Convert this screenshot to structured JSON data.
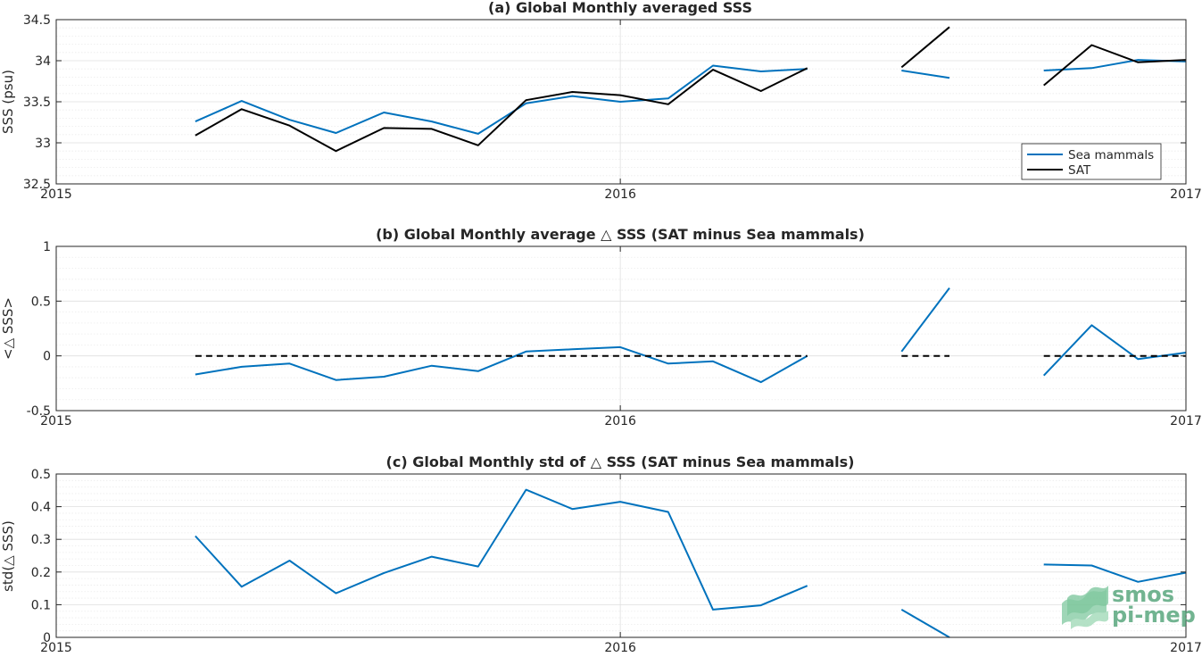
{
  "colors": {
    "sea_mammals": "#0072BD",
    "sat": "#000000",
    "grid": "#dfdfdf",
    "minor_grid": "#ececec",
    "axis": "#262626"
  },
  "logo": {
    "line1": "smos",
    "line2": "pi-mep"
  },
  "chart_data": [
    {
      "type": "line",
      "title": "(a) Global Monthly averaged SSS",
      "xlabel": "",
      "ylabel": "SSS (psu)",
      "xlim": [
        "2015-01-01",
        "2017-01-01"
      ],
      "ylim": [
        32.5,
        34.5
      ],
      "xticks": [
        {
          "x": "2015-01-01",
          "label": "2015"
        },
        {
          "x": "2016-01-01",
          "label": "2016"
        },
        {
          "x": "2017-01-01",
          "label": "2017"
        }
      ],
      "yticks": [
        {
          "v": 32.5,
          "label": "32.5"
        },
        {
          "v": 33,
          "label": "33"
        },
        {
          "v": 33.5,
          "label": "33.5"
        },
        {
          "v": 34,
          "label": "34"
        },
        {
          "v": 34.5,
          "label": "34.5"
        }
      ],
      "grid": true,
      "minor_grid": true,
      "legend": {
        "placement": "bottom-right",
        "entries": [
          "Sea mammals",
          "SAT"
        ]
      },
      "series": [
        {
          "name": "Sea mammals",
          "color": "#0072BD",
          "segments": [
            [
              [
                "2015-04-01",
                33.26
              ],
              [
                "2015-05-01",
                33.51
              ],
              [
                "2015-06-01",
                33.28
              ],
              [
                "2015-07-01",
                33.12
              ],
              [
                "2015-08-01",
                33.37
              ],
              [
                "2015-09-01",
                33.26
              ],
              [
                "2015-10-01",
                33.11
              ],
              [
                "2015-11-01",
                33.48
              ],
              [
                "2015-12-01",
                33.57
              ],
              [
                "2016-01-01",
                33.5
              ],
              [
                "2016-02-01",
                33.54
              ],
              [
                "2016-03-01",
                33.94
              ],
              [
                "2016-04-01",
                33.87
              ],
              [
                "2016-05-01",
                33.9
              ]
            ],
            [
              [
                "2016-07-01",
                33.88
              ],
              [
                "2016-08-01",
                33.79
              ]
            ],
            [
              [
                "2016-10-01",
                33.88
              ],
              [
                "2016-11-01",
                33.91
              ],
              [
                "2016-12-01",
                34.01
              ],
              [
                "2017-01-01",
                33.99
              ]
            ]
          ]
        },
        {
          "name": "SAT",
          "color": "#000000",
          "segments": [
            [
              [
                "2015-04-01",
                33.09
              ],
              [
                "2015-05-01",
                33.41
              ],
              [
                "2015-06-01",
                33.21
              ],
              [
                "2015-07-01",
                32.9
              ],
              [
                "2015-08-01",
                33.18
              ],
              [
                "2015-09-01",
                33.17
              ],
              [
                "2015-10-01",
                32.97
              ],
              [
                "2015-11-01",
                33.52
              ],
              [
                "2015-12-01",
                33.62
              ],
              [
                "2016-01-01",
                33.58
              ],
              [
                "2016-02-01",
                33.47
              ],
              [
                "2016-03-01",
                33.89
              ],
              [
                "2016-04-01",
                33.63
              ],
              [
                "2016-05-01",
                33.91
              ]
            ],
            [
              [
                "2016-07-01",
                33.92
              ],
              [
                "2016-08-01",
                34.41
              ]
            ],
            [
              [
                "2016-10-01",
                33.7
              ],
              [
                "2016-11-01",
                34.19
              ],
              [
                "2016-12-01",
                33.98
              ],
              [
                "2017-01-01",
                34.01
              ]
            ]
          ]
        }
      ]
    },
    {
      "type": "line",
      "title": "(b) Global Monthly average △ SSS (SAT minus Sea mammals)",
      "xlabel": "",
      "ylabel": "<△ SSS>",
      "xlim": [
        "2015-01-01",
        "2017-01-01"
      ],
      "ylim": [
        -0.5,
        1
      ],
      "xticks": [
        {
          "x": "2015-01-01",
          "label": "2015"
        },
        {
          "x": "2016-01-01",
          "label": "2016"
        },
        {
          "x": "2017-01-01",
          "label": "2017"
        }
      ],
      "yticks": [
        {
          "v": -0.5,
          "label": "-0.5"
        },
        {
          "v": 0,
          "label": "0"
        },
        {
          "v": 0.5,
          "label": "0.5"
        },
        {
          "v": 1,
          "label": "1"
        }
      ],
      "grid": true,
      "minor_grid": true,
      "series": [
        {
          "color": "#0072BD",
          "segments": [
            [
              [
                "2015-04-01",
                -0.17
              ],
              [
                "2015-05-01",
                -0.1
              ],
              [
                "2015-06-01",
                -0.07
              ],
              [
                "2015-07-01",
                -0.22
              ],
              [
                "2015-08-01",
                -0.19
              ],
              [
                "2015-09-01",
                -0.09
              ],
              [
                "2015-10-01",
                -0.14
              ],
              [
                "2015-11-01",
                0.04
              ],
              [
                "2015-12-01",
                0.06
              ],
              [
                "2016-01-01",
                0.08
              ],
              [
                "2016-02-01",
                -0.07
              ],
              [
                "2016-03-01",
                -0.05
              ],
              [
                "2016-04-01",
                -0.24
              ],
              [
                "2016-05-01",
                0.0
              ]
            ],
            [
              [
                "2016-07-01",
                0.04
              ],
              [
                "2016-08-01",
                0.62
              ]
            ],
            [
              [
                "2016-10-01",
                -0.18
              ],
              [
                "2016-11-01",
                0.28
              ],
              [
                "2016-12-01",
                -0.03
              ],
              [
                "2017-01-01",
                0.03
              ]
            ]
          ]
        },
        {
          "color": "#000000",
          "dashed": true,
          "segments": [
            [
              [
                "2015-04-01",
                0
              ],
              [
                "2016-05-01",
                0
              ]
            ],
            [
              [
                "2016-07-01",
                0
              ],
              [
                "2016-08-01",
                0
              ]
            ],
            [
              [
                "2016-10-01",
                0
              ],
              [
                "2017-01-01",
                0
              ]
            ]
          ]
        }
      ]
    },
    {
      "type": "line",
      "title": "(c) Global Monthly std of △ SSS (SAT minus Sea mammals)",
      "xlabel": "",
      "ylabel": "std(△ SSS)",
      "xlim": [
        "2015-01-01",
        "2017-01-01"
      ],
      "ylim": [
        0,
        0.5
      ],
      "xticks": [
        {
          "x": "2015-01-01",
          "label": "2015"
        },
        {
          "x": "2016-01-01",
          "label": "2016"
        },
        {
          "x": "2017-01-01",
          "label": "2017"
        }
      ],
      "yticks": [
        {
          "v": 0,
          "label": "0"
        },
        {
          "v": 0.1,
          "label": "0.1"
        },
        {
          "v": 0.2,
          "label": "0.2"
        },
        {
          "v": 0.3,
          "label": "0.3"
        },
        {
          "v": 0.4,
          "label": "0.4"
        },
        {
          "v": 0.5,
          "label": "0.5"
        }
      ],
      "grid": true,
      "minor_grid": true,
      "series": [
        {
          "color": "#0072BD",
          "segments": [
            [
              [
                "2015-04-01",
                0.31
              ],
              [
                "2015-05-01",
                0.155
              ],
              [
                "2015-06-01",
                0.235
              ],
              [
                "2015-07-01",
                0.135
              ],
              [
                "2015-08-01",
                0.197
              ],
              [
                "2015-09-01",
                0.247
              ],
              [
                "2015-10-01",
                0.217
              ],
              [
                "2015-11-01",
                0.452
              ],
              [
                "2015-12-01",
                0.393
              ],
              [
                "2016-01-01",
                0.415
              ],
              [
                "2016-02-01",
                0.384
              ],
              [
                "2016-03-01",
                0.085
              ],
              [
                "2016-04-01",
                0.098
              ],
              [
                "2016-05-01",
                0.158
              ]
            ],
            [
              [
                "2016-07-01",
                0.085
              ],
              [
                "2016-08-01",
                0.0
              ]
            ],
            [
              [
                "2016-10-01",
                0.223
              ],
              [
                "2016-11-01",
                0.22
              ],
              [
                "2016-12-01",
                0.17
              ],
              [
                "2017-01-01",
                0.198
              ]
            ]
          ]
        }
      ]
    }
  ]
}
